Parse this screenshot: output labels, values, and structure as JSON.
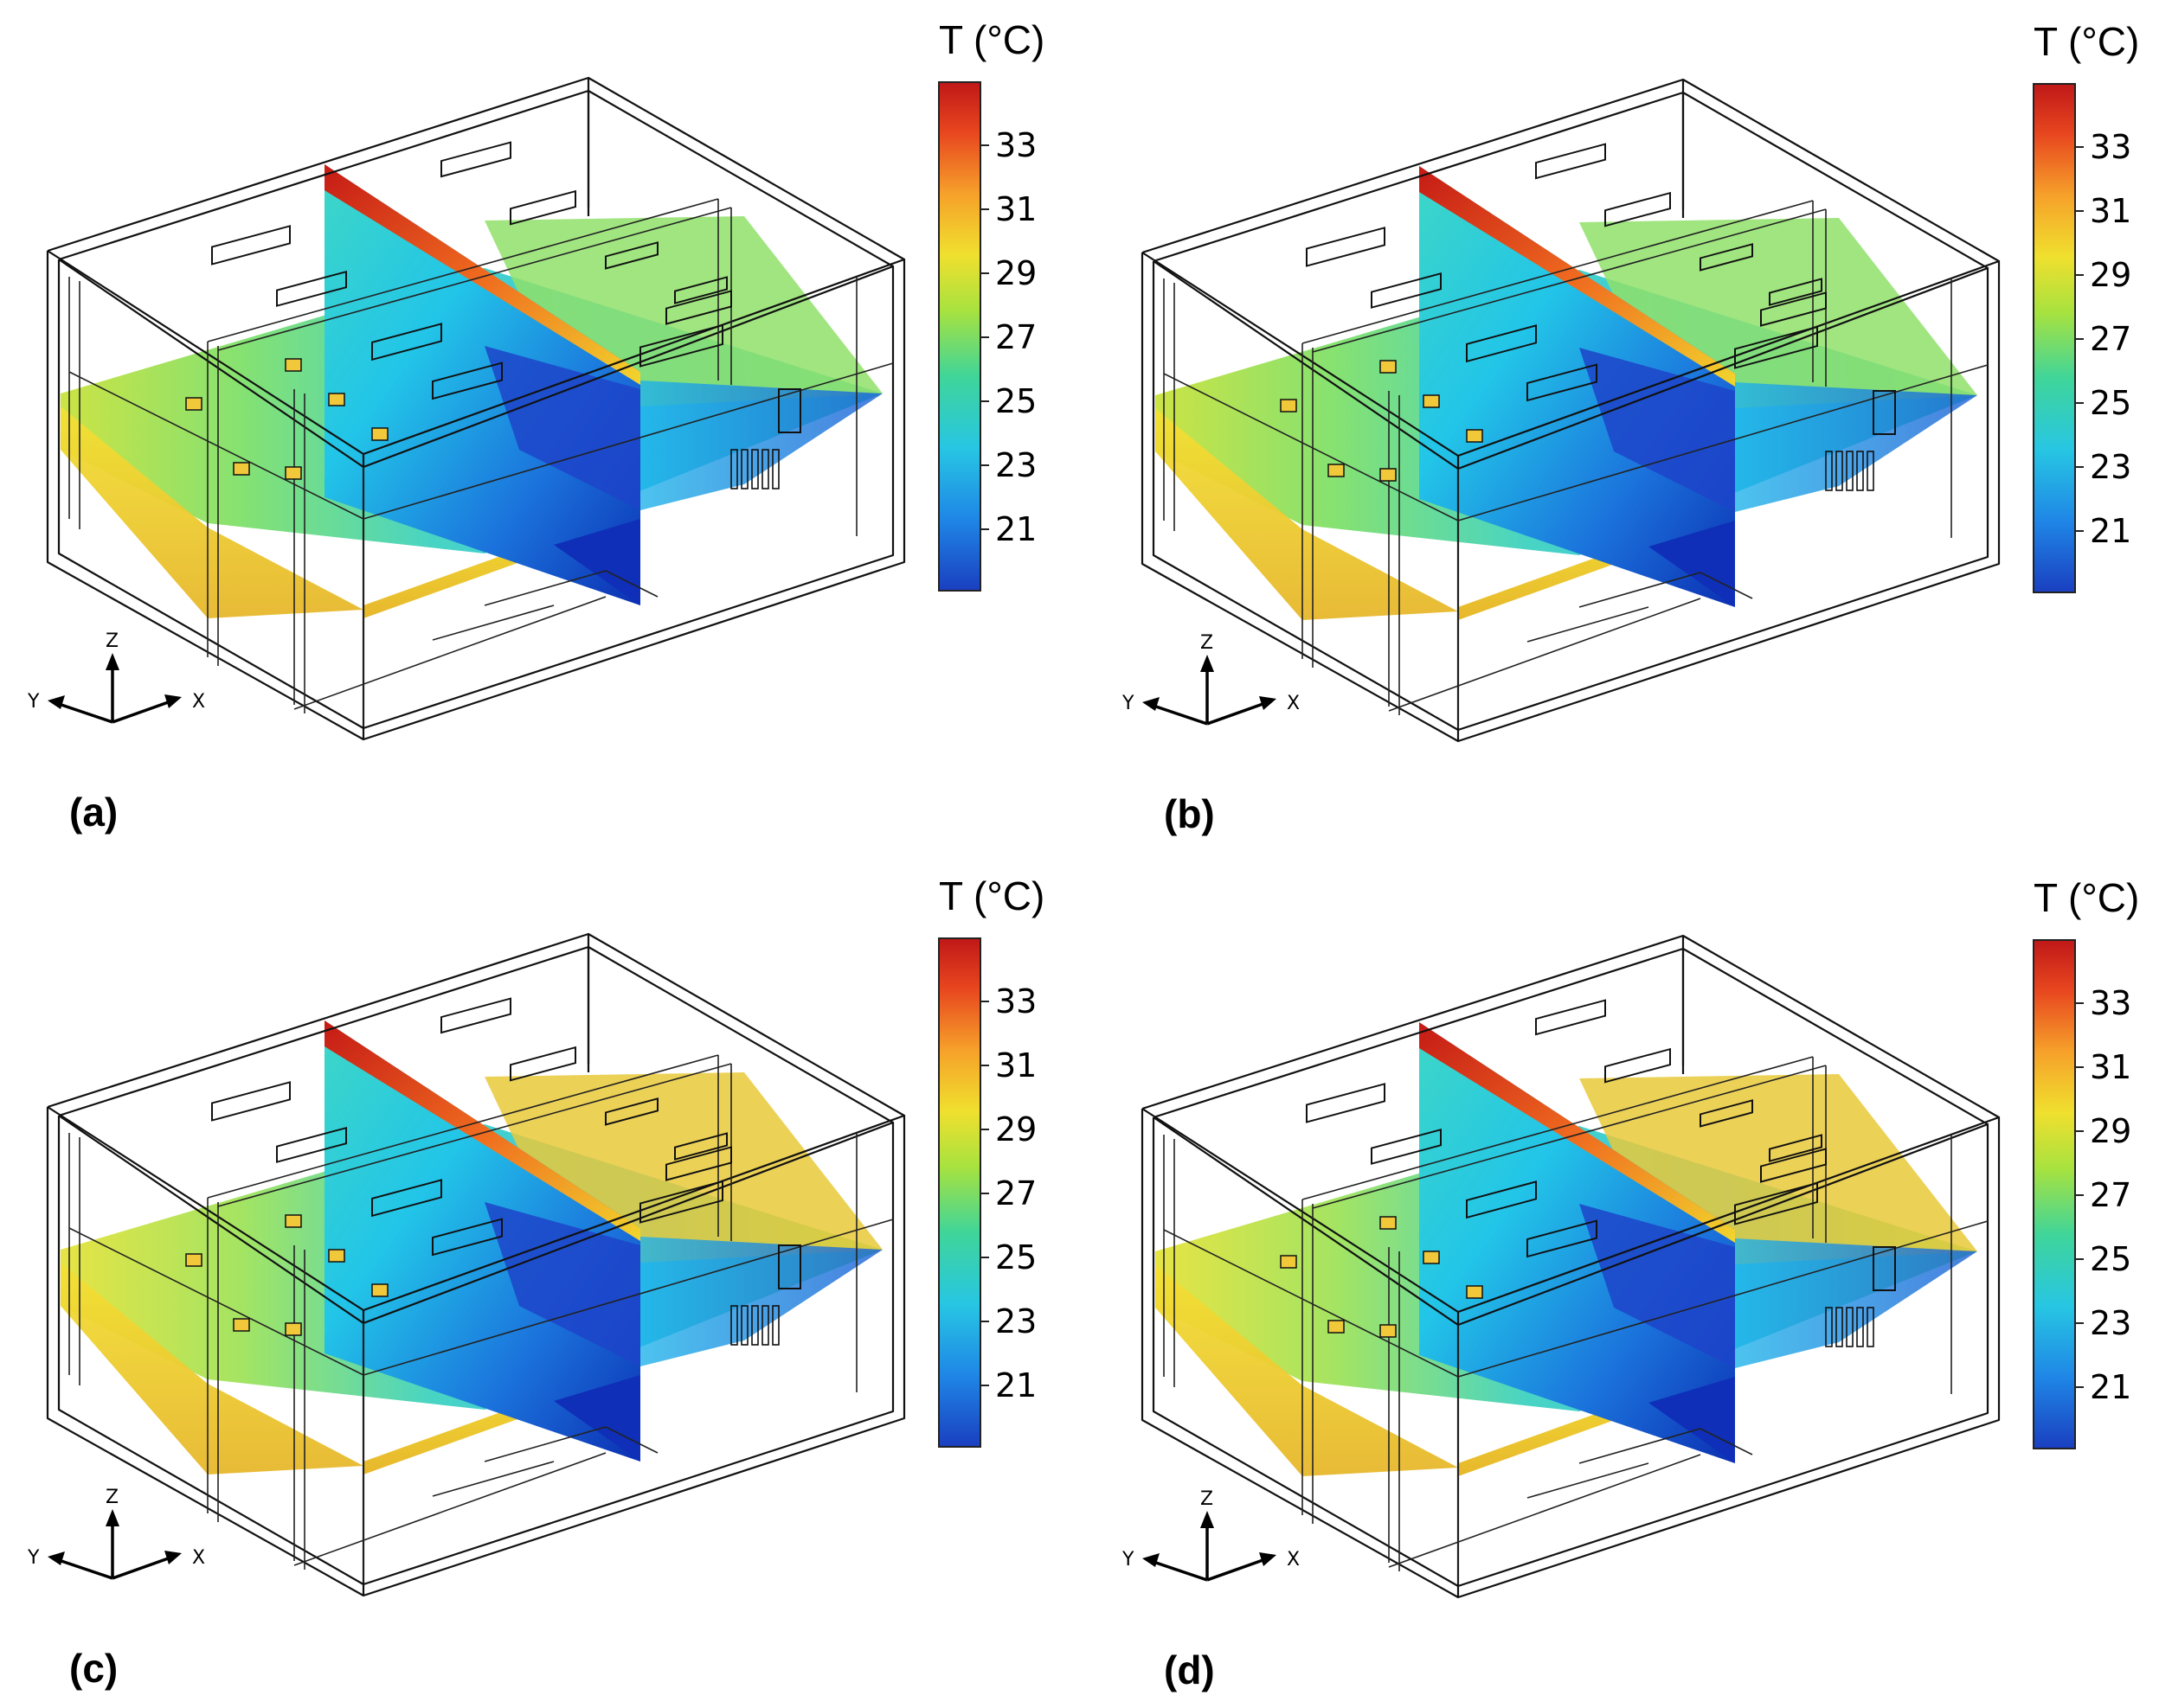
{
  "figure": {
    "panels": [
      {
        "id": "a",
        "label": "(a)"
      },
      {
        "id": "b",
        "label": "(b)"
      },
      {
        "id": "c",
        "label": "(c)"
      },
      {
        "id": "d",
        "label": "(d)"
      }
    ],
    "colorbar": {
      "title": "T (°C)",
      "ticks": [
        "33",
        "31",
        "29",
        "27",
        "25",
        "23",
        "21"
      ],
      "colors": [
        "#0a2ea8",
        "#1d7fe0",
        "#2cc7d8",
        "#3fd08f",
        "#d8e63a",
        "#f5a623",
        "#e0341f",
        "#b41414"
      ]
    },
    "triad": {
      "z": "Z",
      "y": "Y",
      "x": "X"
    }
  }
}
